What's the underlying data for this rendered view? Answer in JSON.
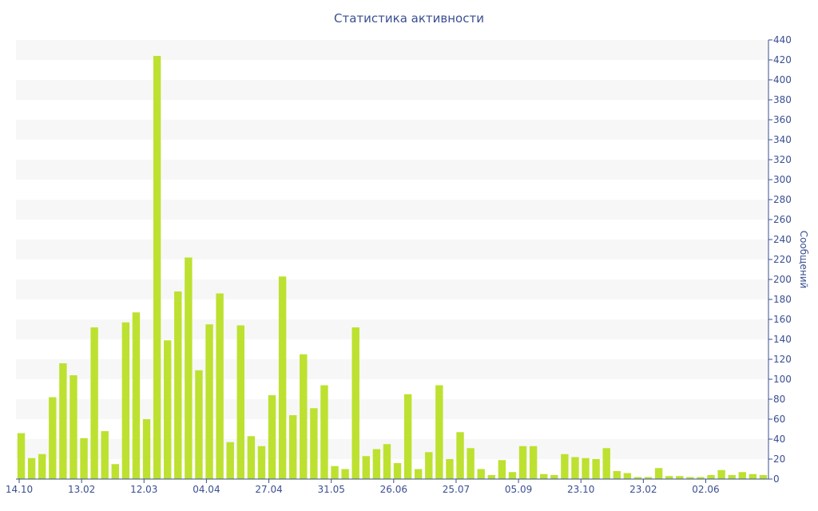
{
  "chart_data": {
    "type": "bar",
    "title": "Статистика активности",
    "xlabel": "",
    "ylabel": "Сообщений",
    "ylim": [
      0,
      440
    ],
    "y_ticks": [
      0,
      20,
      40,
      60,
      80,
      100,
      120,
      140,
      160,
      180,
      200,
      220,
      240,
      260,
      280,
      300,
      320,
      340,
      360,
      380,
      400,
      420,
      440
    ],
    "x_tick_labels": [
      "14.10",
      "13.02",
      "12.03",
      "04.04",
      "27.04",
      "31.05",
      "26.06",
      "25.07",
      "05.09",
      "23.10",
      "23.02",
      "02.06"
    ],
    "grid": "alternating horizontal bands",
    "bar_color": "#bde130",
    "text_color": "#3a4f91",
    "band_color": "#f7f7f7",
    "values": [
      46,
      21,
      25,
      82,
      116,
      104,
      41,
      152,
      48,
      15,
      157,
      167,
      60,
      424,
      139,
      188,
      222,
      109,
      155,
      186,
      37,
      154,
      43,
      33,
      84,
      203,
      64,
      125,
      71,
      94,
      13,
      10,
      152,
      23,
      30,
      35,
      16,
      85,
      10,
      27,
      94,
      20,
      47,
      31,
      10,
      4,
      19,
      7,
      33,
      33,
      5,
      4,
      25,
      22,
      21,
      20,
      31,
      8,
      6,
      2,
      2,
      11,
      3,
      3,
      2,
      2,
      4,
      9,
      4,
      7,
      5,
      4
    ]
  }
}
